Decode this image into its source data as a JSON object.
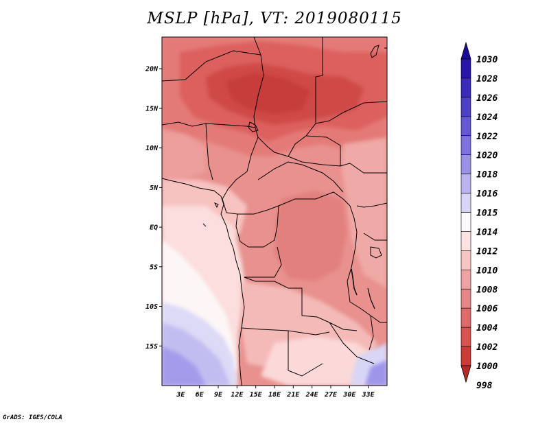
{
  "title": "MSLP [hPa], VT: 2019080115",
  "footer": "GrADS: IGES/COLA",
  "map": {
    "lon_range": [
      0,
      36
    ],
    "lat_range": [
      -20,
      24
    ],
    "lon_ticks": [
      {
        "value": 3,
        "label": "3E"
      },
      {
        "value": 6,
        "label": "6E"
      },
      {
        "value": 9,
        "label": "9E"
      },
      {
        "value": 12,
        "label": "12E"
      },
      {
        "value": 15,
        "label": "15E"
      },
      {
        "value": 18,
        "label": "18E"
      },
      {
        "value": 21,
        "label": "21E"
      },
      {
        "value": 24,
        "label": "24E"
      },
      {
        "value": 27,
        "label": "27E"
      },
      {
        "value": 30,
        "label": "30E"
      },
      {
        "value": 33,
        "label": "33E"
      }
    ],
    "lat_ticks": [
      {
        "value": 20,
        "label": "20N"
      },
      {
        "value": 15,
        "label": "15N"
      },
      {
        "value": 10,
        "label": "10N"
      },
      {
        "value": 5,
        "label": "5N"
      },
      {
        "value": 0,
        "label": "EQ"
      },
      {
        "value": -5,
        "label": "5S"
      },
      {
        "value": -10,
        "label": "10S"
      },
      {
        "value": -15,
        "label": "15S"
      }
    ]
  },
  "colorbar": {
    "levels": [
      {
        "label": "1030",
        "color": "#1c0a9a"
      },
      {
        "label": "1028",
        "color": "#2816a8"
      },
      {
        "label": "1026",
        "color": "#3a2bb8"
      },
      {
        "label": "1024",
        "color": "#4b40c6"
      },
      {
        "label": "1022",
        "color": "#6458d4"
      },
      {
        "label": "1020",
        "color": "#7e72df"
      },
      {
        "label": "1018",
        "color": "#9a91e8"
      },
      {
        "label": "1016",
        "color": "#bab4f0"
      },
      {
        "label": "1015",
        "color": "#d8d6f6"
      },
      {
        "label": "1014",
        "color": "#fbf9fb"
      },
      {
        "label": "1012",
        "color": "#fde4e2"
      },
      {
        "label": "1010",
        "color": "#f8c5c3"
      },
      {
        "label": "1008",
        "color": "#f0a3a0"
      },
      {
        "label": "1006",
        "color": "#e78785"
      },
      {
        "label": "1004",
        "color": "#e06c69"
      },
      {
        "label": "1002",
        "color": "#d9534f"
      },
      {
        "label": "1000",
        "color": "#cc3b37"
      },
      {
        "label": "998",
        "color": "#b82925"
      }
    ]
  },
  "colors": {
    "background": "#ffffff",
    "border": "#000000"
  }
}
